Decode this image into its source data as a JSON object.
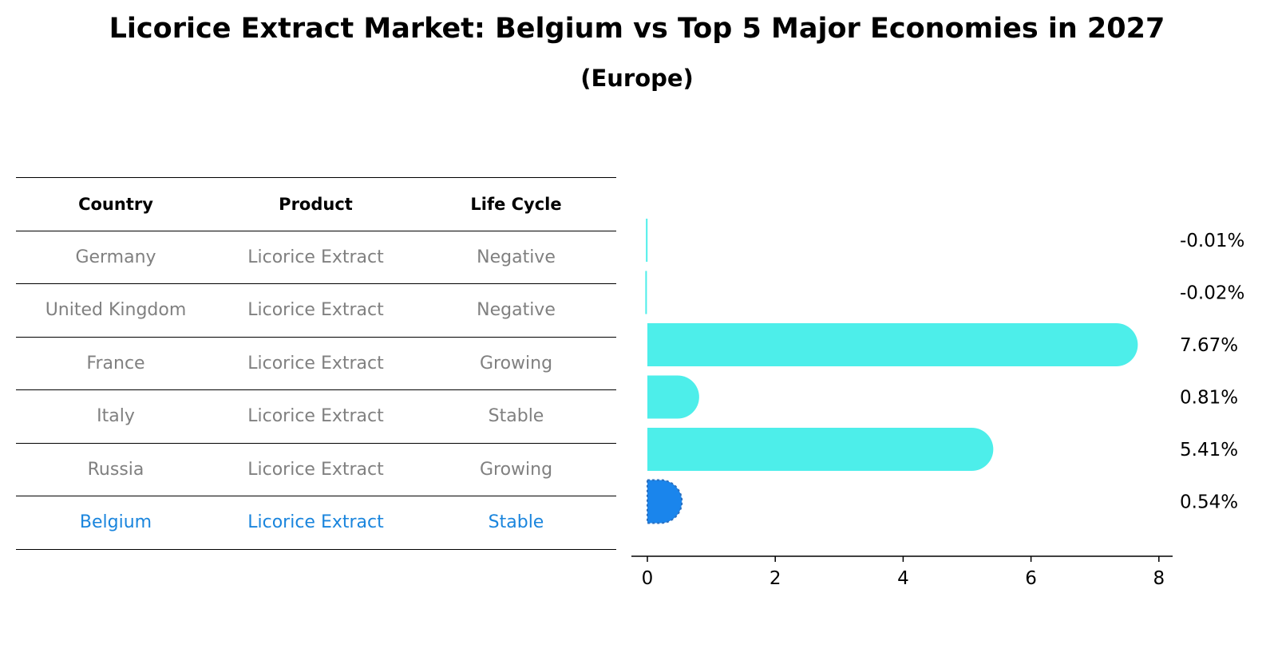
{
  "title": "Licorice Extract Market: Belgium vs Top 5 Major Economies in 2027",
  "subtitle": "(Europe)",
  "table": {
    "headers": [
      "Country",
      "Product",
      "Life Cycle"
    ],
    "rows": [
      {
        "country": "Germany",
        "product": "Licorice Extract",
        "life_cycle": "Negative"
      },
      {
        "country": "United Kingdom",
        "product": "Licorice Extract",
        "life_cycle": "Negative"
      },
      {
        "country": "France",
        "product": "Licorice Extract",
        "life_cycle": "Growing"
      },
      {
        "country": "Italy",
        "product": "Licorice Extract",
        "life_cycle": "Stable"
      },
      {
        "country": "Russia",
        "product": "Licorice Extract",
        "life_cycle": "Growing"
      },
      {
        "country": "Belgium",
        "product": "Licorice Extract",
        "life_cycle": "Stable"
      }
    ]
  },
  "chart_data": {
    "type": "bar",
    "orientation": "horizontal",
    "categories": [
      "Germany",
      "United Kingdom",
      "France",
      "Italy",
      "Russia",
      "Belgium"
    ],
    "values": [
      -0.01,
      -0.02,
      7.67,
      0.81,
      5.41,
      0.54
    ],
    "value_labels": [
      "-0.01%",
      "-0.02%",
      "7.67%",
      "0.81%",
      "5.41%",
      "0.54%"
    ],
    "highlight_category": "Belgium",
    "xlim": [
      -0.4,
      8.05
    ],
    "xticks": [
      0,
      2,
      4,
      6,
      8
    ],
    "grid": false,
    "colors": {
      "bar": "#4deeea",
      "highlight_bar": "#1a85ec",
      "highlight_text": "#1a85dd",
      "muted_text": "#808080"
    }
  }
}
